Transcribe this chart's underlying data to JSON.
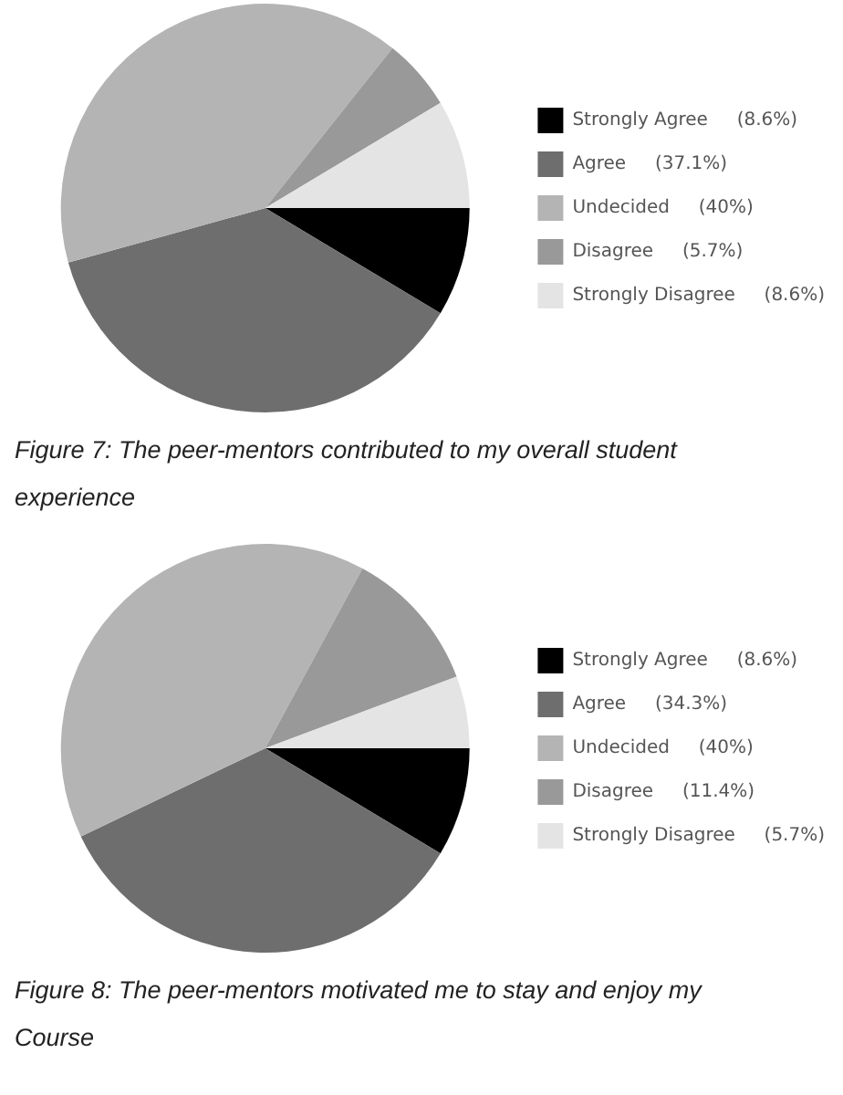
{
  "chart_data": [
    {
      "type": "pie",
      "categories": [
        "Strongly Agree",
        "Agree",
        "Undecided",
        "Disagree",
        "Strongly Disagree"
      ],
      "values": [
        8.6,
        37.1,
        40,
        5.7,
        8.6
      ],
      "value_labels": [
        "(8.6%)",
        "(37.1%)",
        "(40%)",
        "(5.7%)",
        "(8.6%)"
      ],
      "colors": [
        "#000000",
        "#6e6e6e",
        "#b4b4b4",
        "#999999",
        "#e4e4e4"
      ],
      "legend": "right",
      "annotations": [
        "Figure 7: The peer-mentors contributed to my overall student experience"
      ]
    },
    {
      "type": "pie",
      "categories": [
        "Strongly Agree",
        "Agree",
        "Undecided",
        "Disagree",
        "Strongly Disagree"
      ],
      "values": [
        8.6,
        34.3,
        40,
        11.4,
        5.7
      ],
      "value_labels": [
        "(8.6%)",
        "(34.3%)",
        "(40%)",
        "(11.4%)",
        "(5.7%)"
      ],
      "colors": [
        "#000000",
        "#6e6e6e",
        "#b4b4b4",
        "#999999",
        "#e4e4e4"
      ],
      "legend": "right",
      "annotations": [
        "Figure 8: The peer-mentors motivated me to stay and enjoy my Course"
      ]
    }
  ]
}
